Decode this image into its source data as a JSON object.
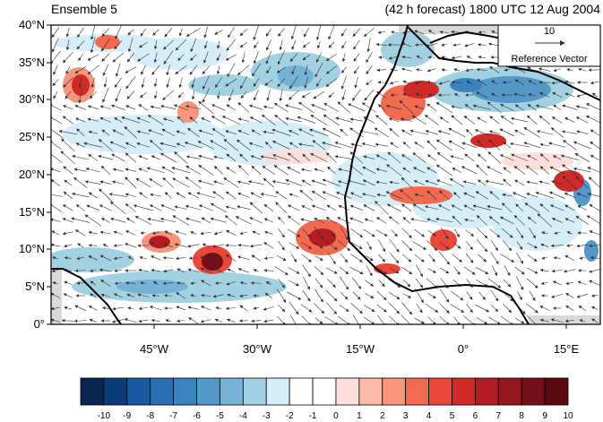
{
  "title_left": "Ensemble 5",
  "title_right": "(42 h forecast) 1800 UTC 12 Aug 2004",
  "reference_vector": {
    "magnitude": "10",
    "label": "Reference Vector"
  },
  "axes": {
    "y_ticks": [
      "0°",
      "5°N",
      "10°N",
      "15°N",
      "20°N",
      "25°N",
      "30°N",
      "35°N",
      "40°N"
    ],
    "x_ticks": [
      "45°W",
      "30°W",
      "15°W",
      "0°",
      "15°E"
    ],
    "lat_range": [
      0,
      40
    ],
    "lon_range": [
      -60,
      20
    ]
  },
  "colorbar": {
    "labels": [
      "-10",
      "-9",
      "-8",
      "-7",
      "-6",
      "-5",
      "-4",
      "-3",
      "-2",
      "-1",
      "0",
      "1",
      "2",
      "3",
      "4",
      "5",
      "6",
      "7",
      "8",
      "9",
      "10"
    ],
    "colors": [
      "#0b2450",
      "#0d3c7a",
      "#1a5aa0",
      "#2a6fb2",
      "#3b82c0",
      "#5497c9",
      "#76b2d6",
      "#a2d2e1",
      "#d6eef7",
      "#ffffff",
      "#ffffff",
      "#fde0dc",
      "#fbb9a8",
      "#f8957d",
      "#f26a50",
      "#e8473a",
      "#d02a28",
      "#b51c23",
      "#961620",
      "#730f18",
      "#5a0a10"
    ]
  },
  "colors": {
    "land_mask": "#d9d9d9",
    "coast": "#000000"
  }
}
